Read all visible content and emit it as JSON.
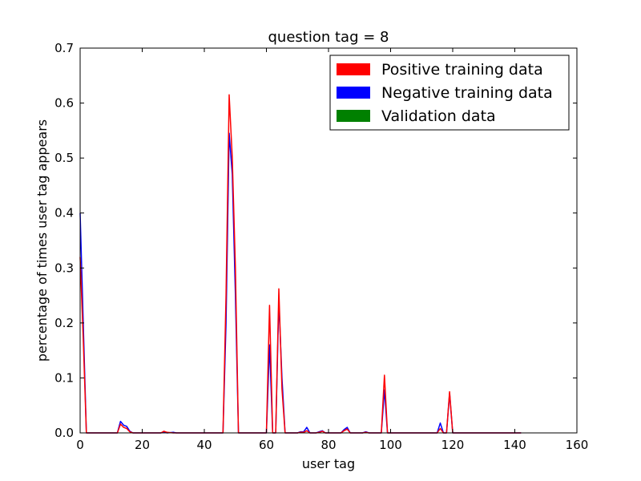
{
  "chart_data": {
    "type": "line",
    "title": "question tag = 8",
    "xlabel": "user tag",
    "ylabel": "percentage of times user tag appears",
    "xlim": [
      0,
      160
    ],
    "ylim": [
      0,
      0.7
    ],
    "xticks": [
      "0",
      "20",
      "40",
      "60",
      "80",
      "100",
      "120",
      "140",
      "160"
    ],
    "yticks": [
      "0.0",
      "0.1",
      "0.2",
      "0.3",
      "0.4",
      "0.5",
      "0.6",
      "0.7"
    ],
    "legend_position": "top-right",
    "grid": false,
    "legend": [
      {
        "name": "Positive training data",
        "color": "#ff0000"
      },
      {
        "name": "Negative training data",
        "color": "#0000ff"
      },
      {
        "name": "Validation data",
        "color": "#008000"
      }
    ],
    "series": [
      {
        "name": "Negative training data",
        "color": "#0000ff",
        "x": [
          0,
          1,
          2,
          3,
          12,
          13,
          14,
          15,
          16,
          17,
          26,
          27,
          28,
          30,
          31,
          46,
          47,
          48,
          49,
          50,
          51,
          52,
          60,
          61,
          62,
          63,
          64,
          65,
          66,
          70,
          71,
          72,
          73,
          74,
          76,
          77,
          78,
          79,
          84,
          85,
          86,
          87,
          88,
          91,
          92,
          93,
          96,
          97,
          98,
          99,
          100,
          114,
          115,
          116,
          117,
          118,
          119,
          120,
          121,
          142
        ],
        "y": [
          0.4,
          0.2,
          0.0,
          0.0,
          0.0,
          0.021,
          0.014,
          0.012,
          0.003,
          0.0,
          0.0,
          0.002,
          0.0,
          0.001,
          0.0,
          0.0,
          0.2,
          0.545,
          0.47,
          0.25,
          0.0,
          0.0,
          0.0,
          0.16,
          0.0,
          0.0,
          0.24,
          0.1,
          0.0,
          0.0,
          0.002,
          0.002,
          0.01,
          0.0,
          0.0,
          0.002,
          0.004,
          0.0,
          0.0,
          0.006,
          0.01,
          0.0,
          0.0,
          0.0,
          0.002,
          0.0,
          0.0,
          0.0,
          0.078,
          0.0,
          0.0,
          0.0,
          0.0,
          0.018,
          0.0,
          0.0,
          0.072,
          0.0,
          0.0,
          0.0
        ]
      },
      {
        "name": "Positive training data",
        "color": "#ff0000",
        "x": [
          0,
          1,
          2,
          3,
          12,
          13,
          14,
          15,
          16,
          17,
          26,
          27,
          28,
          30,
          31,
          46,
          47,
          48,
          49,
          50,
          51,
          52,
          60,
          61,
          62,
          63,
          64,
          65,
          66,
          70,
          71,
          72,
          73,
          74,
          76,
          77,
          78,
          79,
          84,
          85,
          86,
          87,
          88,
          91,
          92,
          93,
          96,
          97,
          98,
          99,
          100,
          114,
          115,
          116,
          117,
          118,
          119,
          120,
          121,
          142
        ],
        "y": [
          0.32,
          0.17,
          0.0,
          0.0,
          0.0,
          0.016,
          0.01,
          0.008,
          0.002,
          0.0,
          0.0,
          0.003,
          0.001,
          0.0,
          0.0,
          0.0,
          0.25,
          0.615,
          0.5,
          0.3,
          0.0,
          0.0,
          0.0,
          0.232,
          0.0,
          0.0,
          0.262,
          0.08,
          0.0,
          0.0,
          0.001,
          0.001,
          0.004,
          0.0,
          0.0,
          0.001,
          0.003,
          0.0,
          0.0,
          0.004,
          0.007,
          0.0,
          0.0,
          0.0,
          0.001,
          0.0,
          0.0,
          0.0,
          0.105,
          0.0,
          0.0,
          0.0,
          0.0,
          0.008,
          0.0,
          0.0,
          0.075,
          0.0,
          0.0,
          0.0
        ]
      }
    ]
  }
}
